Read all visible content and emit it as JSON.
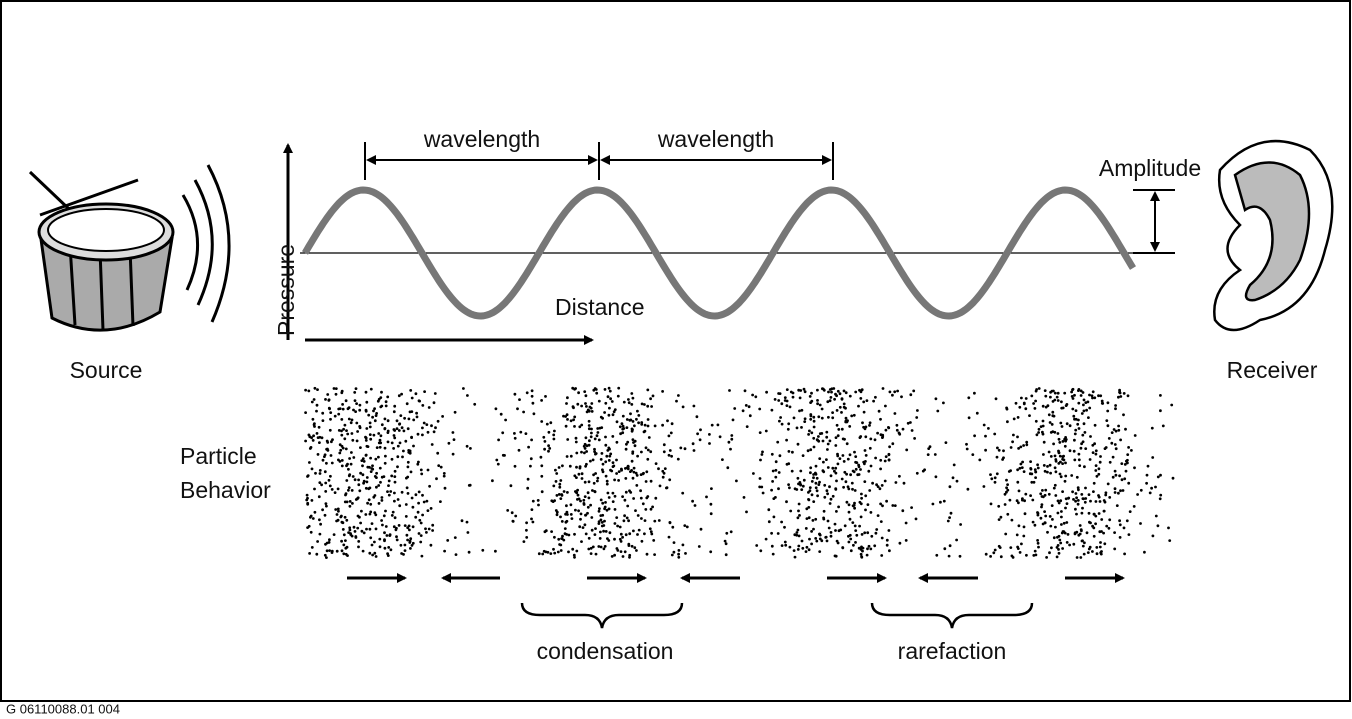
{
  "title": null,
  "wave": {
    "wavelength_labels": [
      "wavelength",
      "wavelength"
    ],
    "amplitude": "Amplitude",
    "y_axis": "Pressure",
    "x_axis": "Distance"
  },
  "source": "Source",
  "receiver": "Receiver",
  "particles": {
    "label": [
      "Particle",
      "Behavior"
    ]
  },
  "regions": {
    "condensation": "condensation",
    "rarefaction": "rarefaction"
  },
  "footer": "G 06110088.01 004"
}
